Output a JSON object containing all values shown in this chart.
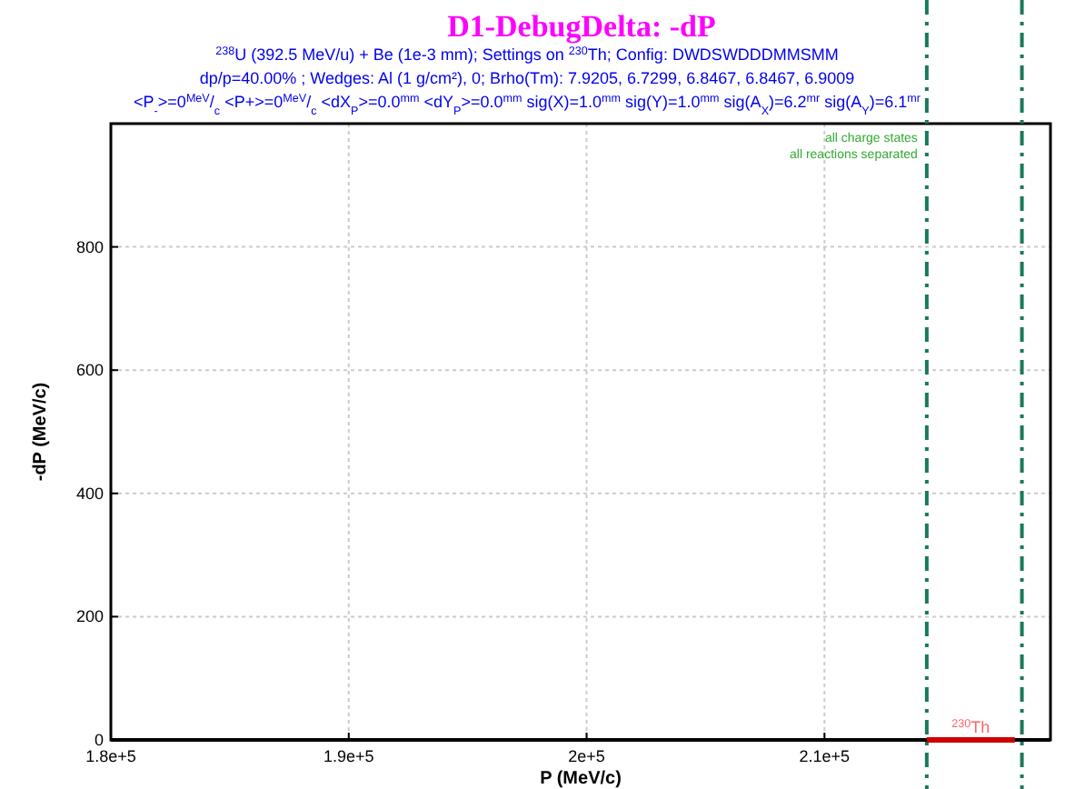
{
  "chart_data": {
    "type": "line",
    "title": "D1-DebugDelta:  -dP",
    "subtitle": "$^{238}$U (392.5 MeV/u) + Be (1e-3 mm);  Settings on $^{230}$Th;  Config: DWDSWDDDMMSMM\ndp/p=40.00% ; Wedges: Al (1 g/cm²), 0; Brho(Tm): 7.9205, 6.7299, 6.8467, 6.8467, 6.9009\n<P$_{-}$>=0$^{MeV}$/$_{c}$  <P+>=0$^{MeV}$/$_{c}$  <dX$_{P}$>=0.0$^{mm}$  <dY$_{P}$>=0.0$^{mm}$  sig(X)=1.0$^{mm}$  sig(Y)=1.0$^{mm}$  sig(A$_{X}$)=6.2$^{mr}$  sig(A$_{Y}$)=6.1$^{mr}$",
    "xlabel": "P (MeV/c)",
    "ylabel": "-dP (MeV/c)",
    "xlim": [
      180000,
      219500
    ],
    "ylim": [
      0,
      1000
    ],
    "xticks": [
      {
        "value": 180000,
        "label": "1.8e+5"
      },
      {
        "value": 190000,
        "label": "1.9e+5"
      },
      {
        "value": 200000,
        "label": "2e+5"
      },
      {
        "value": 210000,
        "label": "2.1e+5"
      }
    ],
    "yticks": [
      0,
      200,
      400,
      600,
      800
    ],
    "grid": true,
    "marker": "none",
    "line_style": "solid",
    "series": [
      {
        "name": "$^{230}$Th",
        "color": "#cc0000",
        "x": [
          214300,
          218000
        ],
        "values": [
          0,
          0
        ]
      }
    ],
    "ref_lines": [
      {
        "axis": "x",
        "value": 214300,
        "color": "#1a7a5a",
        "line_style": "dashed"
      },
      {
        "axis": "x",
        "value": 218300,
        "color": "#1a7a5a",
        "line_style": "dashed"
      }
    ],
    "annotations": [
      "all charge states",
      "all reactions separated"
    ]
  }
}
